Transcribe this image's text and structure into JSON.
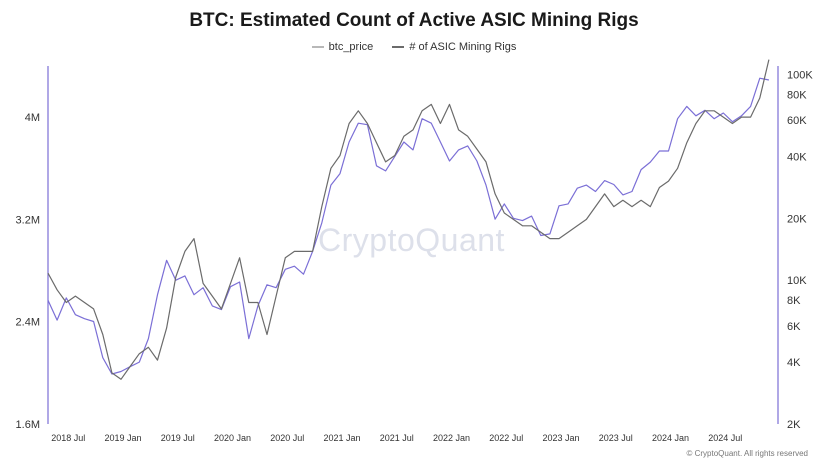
{
  "chart_data": {
    "type": "line",
    "title": "BTC: Estimated Count of Active ASIC Mining Rigs",
    "legend_position": "top-center",
    "grid": false,
    "watermark": "CryptoQuant",
    "copyright": "© CryptoQuant. All rights reserved",
    "x_ticks": [
      "2018 Jul",
      "2019 Jan",
      "2019 Jul",
      "2020 Jan",
      "2020 Jul",
      "2021 Jan",
      "2021 Jul",
      "2022 Jan",
      "2022 Jul",
      "2023 Jan",
      "2023 Jul",
      "2024 Jan",
      "2024 Jul"
    ],
    "xlim": [
      "2018-05",
      "2025-01"
    ],
    "y_left": {
      "series": "# of ASIC Mining Rigs",
      "scale": "linear",
      "ylim": [
        1600000,
        4400000
      ],
      "tick_values": [
        1600000,
        2400000,
        3200000,
        4000000
      ],
      "tick_labels": [
        "1.6M",
        "2.4M",
        "3.2M",
        "4M"
      ]
    },
    "y_right": {
      "series": "btc_price",
      "scale": "log",
      "ylim": [
        2000,
        110000
      ],
      "tick_values": [
        2000,
        4000,
        6000,
        8000,
        10000,
        20000,
        40000,
        60000,
        80000,
        100000
      ],
      "tick_labels": [
        "2K",
        "4K",
        "6K",
        "8K",
        "10K",
        "20K",
        "40K",
        "60K",
        "80K",
        "100K"
      ]
    },
    "series": [
      {
        "name": "btc_price",
        "axis": "right",
        "color": "#7b6fd6",
        "x": [
          "2018-05",
          "2018-06",
          "2018-07",
          "2018-08",
          "2018-09",
          "2018-10",
          "2018-11",
          "2018-12",
          "2019-01",
          "2019-02",
          "2019-03",
          "2019-04",
          "2019-05",
          "2019-06",
          "2019-07",
          "2019-08",
          "2019-09",
          "2019-10",
          "2019-11",
          "2019-12",
          "2020-01",
          "2020-02",
          "2020-03",
          "2020-04",
          "2020-05",
          "2020-06",
          "2020-07",
          "2020-08",
          "2020-09",
          "2020-10",
          "2020-11",
          "2020-12",
          "2021-01",
          "2021-02",
          "2021-03",
          "2021-04",
          "2021-05",
          "2021-06",
          "2021-07",
          "2021-08",
          "2021-09",
          "2021-10",
          "2021-11",
          "2021-12",
          "2022-01",
          "2022-02",
          "2022-03",
          "2022-04",
          "2022-05",
          "2022-06",
          "2022-07",
          "2022-08",
          "2022-09",
          "2022-10",
          "2022-11",
          "2022-12",
          "2023-01",
          "2023-02",
          "2023-03",
          "2023-04",
          "2023-05",
          "2023-06",
          "2023-07",
          "2023-08",
          "2023-09",
          "2023-10",
          "2023-11",
          "2023-12",
          "2024-01",
          "2024-02",
          "2024-03",
          "2024-04",
          "2024-05",
          "2024-06",
          "2024-07",
          "2024-08",
          "2024-09",
          "2024-10",
          "2024-11",
          "2024-12"
        ],
        "values": [
          8000,
          6400,
          8200,
          6800,
          6500,
          6300,
          4200,
          3500,
          3600,
          3800,
          4000,
          5200,
          8500,
          12500,
          10000,
          10500,
          8500,
          9200,
          7500,
          7200,
          9300,
          9800,
          5200,
          7500,
          9500,
          9200,
          11300,
          11700,
          10700,
          13800,
          19000,
          29000,
          33000,
          47000,
          58000,
          57000,
          36000,
          34000,
          40000,
          47000,
          43000,
          61000,
          58000,
          47000,
          38000,
          43000,
          45000,
          38000,
          29000,
          19800,
          23500,
          20000,
          19500,
          20500,
          16500,
          16800,
          23000,
          23500,
          28000,
          29000,
          27000,
          30500,
          29200,
          26000,
          27000,
          34500,
          37500,
          42500,
          42500,
          61000,
          70000,
          63000,
          67000,
          61000,
          65000,
          59000,
          63000,
          70000,
          96000,
          94000
        ]
      },
      {
        "name": "# of ASIC Mining Rigs",
        "axis": "left",
        "color": "#6b6b6b",
        "x": [
          "2018-05",
          "2018-06",
          "2018-07",
          "2018-08",
          "2018-09",
          "2018-10",
          "2018-11",
          "2018-12",
          "2019-01",
          "2019-02",
          "2019-03",
          "2019-04",
          "2019-05",
          "2019-06",
          "2019-07",
          "2019-08",
          "2019-09",
          "2019-10",
          "2019-11",
          "2019-12",
          "2020-01",
          "2020-02",
          "2020-03",
          "2020-04",
          "2020-05",
          "2020-06",
          "2020-07",
          "2020-08",
          "2020-09",
          "2020-10",
          "2020-11",
          "2020-12",
          "2021-01",
          "2021-02",
          "2021-03",
          "2021-04",
          "2021-05",
          "2021-06",
          "2021-07",
          "2021-08",
          "2021-09",
          "2021-10",
          "2021-11",
          "2021-12",
          "2022-01",
          "2022-02",
          "2022-03",
          "2022-04",
          "2022-05",
          "2022-06",
          "2022-07",
          "2022-08",
          "2022-09",
          "2022-10",
          "2022-11",
          "2022-12",
          "2023-01",
          "2023-02",
          "2023-03",
          "2023-04",
          "2023-05",
          "2023-06",
          "2023-07",
          "2023-08",
          "2023-09",
          "2023-10",
          "2023-11",
          "2023-12",
          "2024-01",
          "2024-02",
          "2024-03",
          "2024-04",
          "2024-05",
          "2024-06",
          "2024-07",
          "2024-08",
          "2024-09",
          "2024-10",
          "2024-11",
          "2024-12"
        ],
        "values": [
          2780000,
          2650000,
          2550000,
          2600000,
          2550000,
          2500000,
          2300000,
          2000000,
          1950000,
          2050000,
          2150000,
          2200000,
          2100000,
          2350000,
          2750000,
          2950000,
          3050000,
          2700000,
          2600000,
          2500000,
          2700000,
          2900000,
          2550000,
          2550000,
          2300000,
          2600000,
          2900000,
          2950000,
          2950000,
          2950000,
          3300000,
          3600000,
          3700000,
          3950000,
          4050000,
          3950000,
          3800000,
          3650000,
          3700000,
          3850000,
          3900000,
          4050000,
          4100000,
          3950000,
          4100000,
          3900000,
          3850000,
          3750000,
          3650000,
          3400000,
          3250000,
          3200000,
          3150000,
          3150000,
          3100000,
          3050000,
          3050000,
          3100000,
          3150000,
          3200000,
          3300000,
          3400000,
          3300000,
          3350000,
          3300000,
          3350000,
          3300000,
          3450000,
          3500000,
          3600000,
          3800000,
          3950000,
          4050000,
          4050000,
          4000000,
          3950000,
          4000000,
          4000000,
          4150000,
          4450000
        ]
      }
    ]
  }
}
